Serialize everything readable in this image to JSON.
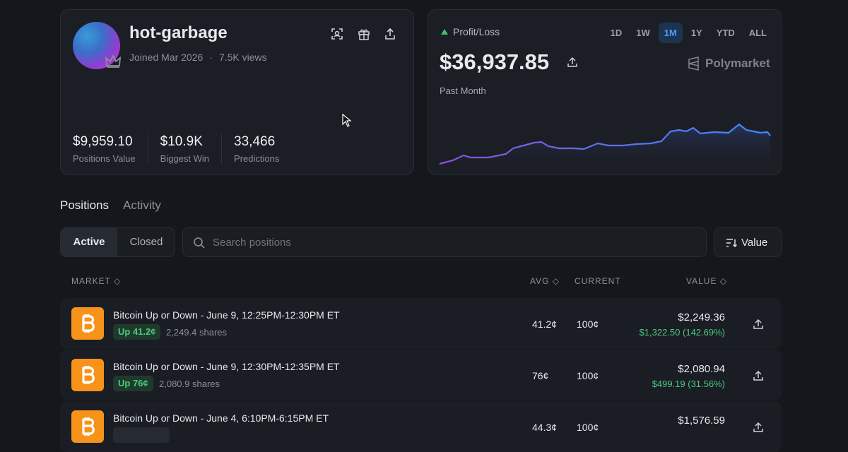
{
  "profile": {
    "name": "hot-garbage",
    "joined": "Joined Mar 2026",
    "views": "7.5K views",
    "stats": [
      {
        "value": "$9,959.10",
        "label": "Positions Value"
      },
      {
        "value": "$10.9K",
        "label": "Biggest Win"
      },
      {
        "value": "33,466",
        "label": "Predictions"
      }
    ]
  },
  "pnl": {
    "label": "Profit/Loss",
    "ranges": [
      "1D",
      "1W",
      "1M",
      "1Y",
      "YTD",
      "ALL"
    ],
    "active_range": 2,
    "value": "$36,937.85",
    "brand": "Polymarket",
    "period": "Past Month"
  },
  "tabs": [
    "Positions",
    "Activity"
  ],
  "filters": [
    "Active",
    "Closed"
  ],
  "search_placeholder": "Search positions",
  "sort": "Value",
  "table": {
    "headers": [
      "MARKET",
      "AVG",
      "CURRENT",
      "VALUE"
    ],
    "rows": [
      {
        "title": "Bitcoin Up or Down - June 9, 12:25PM-12:30PM ET",
        "badge": "Up 41.2¢",
        "shares": "2,249.4 shares",
        "avg": "41.2¢",
        "current": "100¢",
        "value": "$2,249.36",
        "pnl": "$1,322.50 (142.69%)"
      },
      {
        "title": "Bitcoin Up or Down - June 9, 12:30PM-12:35PM ET",
        "badge": "Up 76¢",
        "shares": "2,080.9 shares",
        "avg": "76¢",
        "current": "100¢",
        "value": "$2,080.94",
        "pnl": "$499.19 (31.56%)"
      },
      {
        "title": "Bitcoin Up or Down - June 4, 6:10PM-6:15PM ET",
        "avg": "44.3¢",
        "current": "100¢",
        "value": "$1,576.59"
      }
    ]
  }
}
